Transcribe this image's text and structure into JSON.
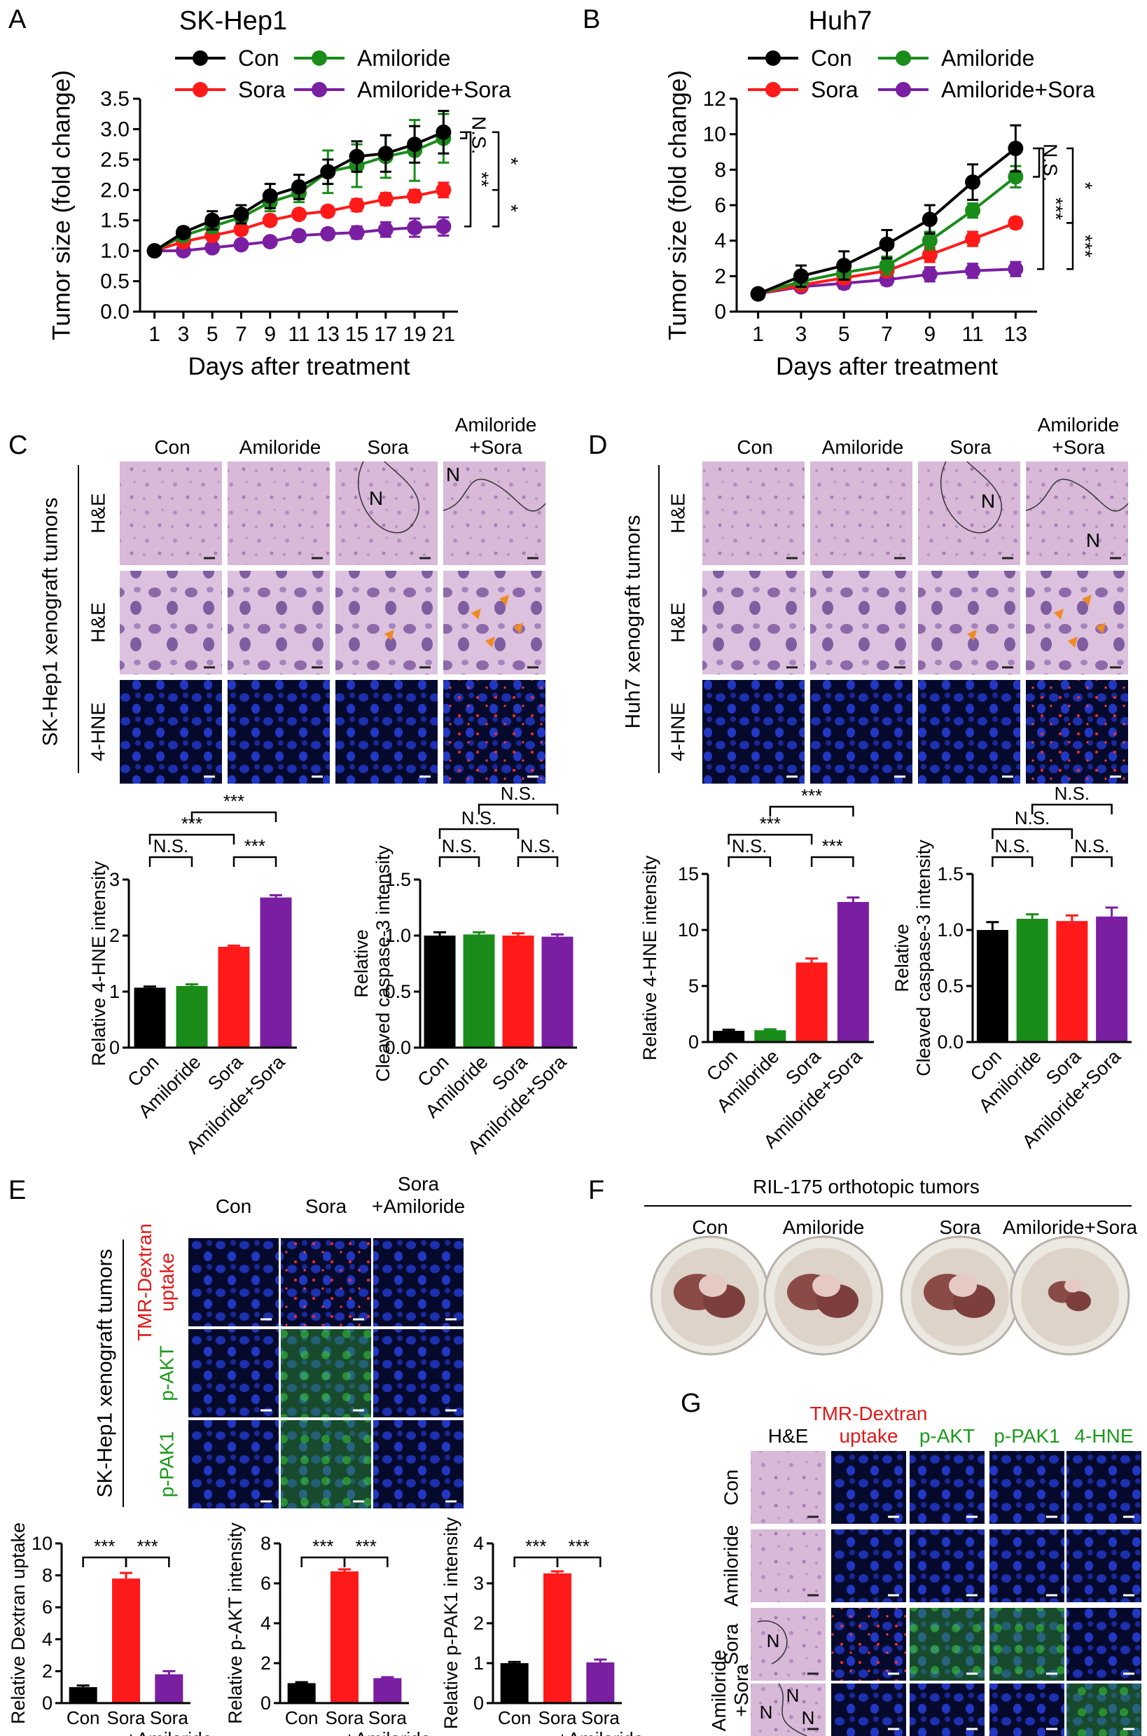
{
  "panel_labels": [
    "A",
    "B",
    "C",
    "D",
    "E",
    "F",
    "G"
  ],
  "chart_data": [
    {
      "type": "line",
      "title": "SK-Hep1",
      "xlabel": "Days after treatment",
      "ylabel": "Tumor size (fold change)",
      "x": [
        1,
        3,
        5,
        7,
        9,
        11,
        13,
        15,
        17,
        19,
        21
      ],
      "xlim": [
        0,
        22
      ],
      "ylim": [
        0,
        3.5
      ],
      "xticks": [
        1,
        3,
        5,
        7,
        9,
        11,
        13,
        15,
        17,
        19,
        21
      ],
      "yticks": [
        {
          "value": 0,
          "label": "0.0"
        },
        0.5,
        {
          "value": 1,
          "label": "1.0"
        },
        1.5,
        {
          "value": 2,
          "label": "2.0"
        },
        2.5,
        {
          "value": 3,
          "label": "3.0"
        },
        3.5
      ],
      "series": [
        {
          "name": "Con",
          "color": "#000000",
          "values": [
            1,
            1.3,
            1.5,
            1.6,
            1.9,
            2.05,
            2.3,
            2.55,
            2.6,
            2.75,
            2.95
          ],
          "errors": [
            0,
            0.08,
            0.15,
            0.15,
            0.2,
            0.2,
            0.2,
            0.25,
            0.3,
            0.3,
            0.35
          ]
        },
        {
          "name": "Amiloride",
          "color": "#1a8c1a",
          "values": [
            1,
            1.25,
            1.4,
            1.55,
            1.8,
            1.95,
            2.3,
            2.4,
            2.55,
            2.65,
            2.85
          ],
          "errors": [
            0,
            0.05,
            0.1,
            0.1,
            0.15,
            0.15,
            0.35,
            0.35,
            0.35,
            0.5,
            0.4
          ]
        },
        {
          "name": "Sora",
          "color": "#ff1a1a",
          "values": [
            1,
            1.15,
            1.25,
            1.35,
            1.5,
            1.6,
            1.65,
            1.75,
            1.85,
            1.9,
            2.0
          ],
          "errors": [
            0,
            0.05,
            0.05,
            0.08,
            0.08,
            0.08,
            0.08,
            0.1,
            0.1,
            0.1,
            0.12
          ]
        },
        {
          "name": "Amiloride+Sora",
          "color": "#7a1fa2",
          "values": [
            1,
            1.0,
            1.05,
            1.1,
            1.15,
            1.25,
            1.28,
            1.3,
            1.35,
            1.38,
            1.4
          ],
          "errors": [
            0,
            0.05,
            0.05,
            0.05,
            0.05,
            0.08,
            0.08,
            0.1,
            0.12,
            0.15,
            0.15
          ]
        }
      ],
      "annotations": [
        "N.S.",
        "*",
        "**",
        "*"
      ]
    },
    {
      "type": "line",
      "title": "Huh7",
      "xlabel": "Days after treatment",
      "ylabel": "Tumor size (fold change)",
      "x": [
        1,
        3,
        5,
        7,
        9,
        11,
        13
      ],
      "xlim": [
        0,
        14
      ],
      "ylim": [
        0,
        12
      ],
      "xticks": [
        1,
        3,
        5,
        7,
        9,
        11,
        13
      ],
      "yticks": [
        0,
        2,
        4,
        6,
        8,
        10,
        12
      ],
      "series": [
        {
          "name": "Con",
          "color": "#000000",
          "values": [
            1,
            2.0,
            2.6,
            3.8,
            5.2,
            7.3,
            9.2
          ],
          "errors": [
            0,
            0.6,
            0.8,
            0.8,
            0.8,
            1.0,
            1.3
          ]
        },
        {
          "name": "Amiloride",
          "color": "#1a8c1a",
          "values": [
            1,
            1.7,
            2.2,
            2.6,
            4.0,
            5.7,
            7.6
          ],
          "errors": [
            0,
            0.3,
            0.4,
            0.5,
            0.5,
            0.4,
            0.6
          ]
        },
        {
          "name": "Sora",
          "color": "#ff1a1a",
          "values": [
            1,
            1.5,
            1.9,
            2.3,
            3.2,
            4.1,
            5.0
          ],
          "errors": [
            0,
            0.2,
            0.3,
            0.3,
            0.4,
            0.4,
            0.3
          ]
        },
        {
          "name": "Amiloride+Sora",
          "color": "#7a1fa2",
          "values": [
            1,
            1.4,
            1.6,
            1.8,
            2.1,
            2.3,
            2.4
          ],
          "errors": [
            0,
            0.2,
            0.3,
            0.3,
            0.4,
            0.4,
            0.4
          ]
        }
      ],
      "annotations": [
        "N.S.",
        "*",
        "***",
        "***"
      ]
    },
    {
      "type": "bar",
      "ylabel": "Relative 4-HNE intensity",
      "categories": [
        "Con",
        "Amiloride",
        "Sora",
        "Amiloride+Sora"
      ],
      "values": [
        1.07,
        1.1,
        1.8,
        2.68
      ],
      "errors": [
        0.02,
        0.03,
        0.02,
        0.04
      ],
      "colors": [
        "#000000",
        "#1a8c1a",
        "#ff1a1a",
        "#7a1fa2"
      ],
      "ylim": [
        0,
        3
      ],
      "yticks": [
        0,
        1,
        2,
        3
      ],
      "annotations": [
        "N.S.",
        "***",
        "***",
        "***"
      ]
    },
    {
      "type": "bar",
      "ylabel": "Relative\nCleaved caspase-3 intensity",
      "categories": [
        "Con",
        "Amiloride",
        "Sora",
        "Amiloride+Sora"
      ],
      "values": [
        1.0,
        1.01,
        1.0,
        0.99
      ],
      "errors": [
        0.03,
        0.02,
        0.02,
        0.02
      ],
      "colors": [
        "#000000",
        "#1a8c1a",
        "#ff1a1a",
        "#7a1fa2"
      ],
      "ylim": [
        0,
        1.5
      ],
      "yticks": [
        {
          "value": 0,
          "label": "0.0"
        },
        0.5,
        {
          "value": 1,
          "label": "1.0"
        },
        1.5
      ],
      "annotations": [
        "N.S.",
        "N.S.",
        "N.S.",
        "N.S."
      ]
    },
    {
      "type": "bar",
      "ylabel": "Relative 4-HNE intensity",
      "categories": [
        "Con",
        "Amiloride",
        "Sora",
        "Amiloride+Sora"
      ],
      "values": [
        1.0,
        1.05,
        7.1,
        12.5
      ],
      "errors": [
        0.1,
        0.08,
        0.35,
        0.4
      ],
      "colors": [
        "#000000",
        "#1a8c1a",
        "#ff1a1a",
        "#7a1fa2"
      ],
      "ylim": [
        0,
        15
      ],
      "yticks": [
        0,
        5,
        10,
        15
      ],
      "annotations": [
        "N.S.",
        "***",
        "***",
        "***"
      ]
    },
    {
      "type": "bar",
      "ylabel": "Relative\nCleaved caspase-3 intensity",
      "categories": [
        "Con",
        "Amiloride",
        "Sora",
        "Amiloride+Sora"
      ],
      "values": [
        1.0,
        1.1,
        1.08,
        1.12
      ],
      "errors": [
        0.07,
        0.04,
        0.05,
        0.08
      ],
      "colors": [
        "#000000",
        "#1a8c1a",
        "#ff1a1a",
        "#7a1fa2"
      ],
      "ylim": [
        0,
        1.5
      ],
      "yticks": [
        {
          "value": 0,
          "label": "0.0"
        },
        0.5,
        {
          "value": 1,
          "label": "1.0"
        },
        1.5
      ],
      "annotations": [
        "N.S.",
        "N.S.",
        "N.S.",
        "N.S."
      ]
    },
    {
      "type": "bar",
      "ylabel": "Relative Dextran uptake",
      "categories": [
        "Con",
        "Sora",
        "Sora\n+Amiloride"
      ],
      "values": [
        1.0,
        7.8,
        1.8
      ],
      "errors": [
        0.1,
        0.35,
        0.2
      ],
      "colors": [
        "#000000",
        "#ff1a1a",
        "#7a1fa2"
      ],
      "ylim": [
        0,
        10
      ],
      "yticks": [
        0,
        2,
        4,
        6,
        8,
        10
      ],
      "annotations": [
        "***",
        "***"
      ]
    },
    {
      "type": "bar",
      "ylabel": "Relative p-AKT intensity",
      "categories": [
        "Con",
        "Sora",
        "Sora\n+Amiloride"
      ],
      "values": [
        1.0,
        6.6,
        1.25
      ],
      "errors": [
        0.05,
        0.1,
        0.05
      ],
      "colors": [
        "#000000",
        "#ff1a1a",
        "#7a1fa2"
      ],
      "ylim": [
        0,
        8
      ],
      "yticks": [
        0,
        2,
        4,
        6,
        8
      ],
      "annotations": [
        "***",
        "***"
      ]
    },
    {
      "type": "bar",
      "ylabel": "Relative p-PAK1 intensity",
      "categories": [
        "Con",
        "Sora",
        "Sora\n+Amiloride"
      ],
      "values": [
        1.0,
        3.25,
        1.02
      ],
      "errors": [
        0.03,
        0.05,
        0.07
      ],
      "colors": [
        "#000000",
        "#ff1a1a",
        "#7a1fa2"
      ],
      "ylim": [
        0,
        4
      ],
      "yticks": [
        0,
        1,
        2,
        3,
        4
      ],
      "annotations": [
        "***",
        "***"
      ]
    }
  ],
  "panel_c": {
    "side_label": "SK-Hep1 xenograft tumors",
    "columns": [
      "Con",
      "Amiloride",
      "Sora",
      "Amiloride\n+Sora"
    ],
    "rows": [
      "H&E",
      "H&E",
      "4-HNE"
    ],
    "region_labels": [
      "N",
      "N"
    ]
  },
  "panel_d": {
    "side_label": "Huh7 xenograft tumors",
    "columns": [
      "Con",
      "Amiloride",
      "Sora",
      "Amiloride\n+Sora"
    ],
    "rows": [
      "H&E",
      "H&E",
      "4-HNE"
    ],
    "region_labels": [
      "N",
      "N"
    ]
  },
  "panel_e": {
    "side_label": "SK-Hep1 xenograft tumors",
    "columns": [
      "Con",
      "Sora",
      "Sora\n+Amiloride"
    ],
    "rows": [
      "TMR-Dextran\nuptake",
      "p-AKT",
      "p-PAK1"
    ]
  },
  "panel_f": {
    "title": "RIL-175 orthotopic tumors",
    "columns": [
      "Con",
      "Amiloride",
      "Sora",
      "Amiloride+Sora"
    ]
  },
  "panel_g": {
    "columns": [
      "H&E",
      "TMR-Dextran\nuptake",
      "p-AKT",
      "p-PAK1",
      "4-HNE"
    ],
    "rows": [
      "Con",
      "Amiloride",
      "Sora",
      "Amiloride\n+Sora"
    ],
    "region_labels": [
      "N",
      "N",
      "N",
      "N"
    ]
  }
}
